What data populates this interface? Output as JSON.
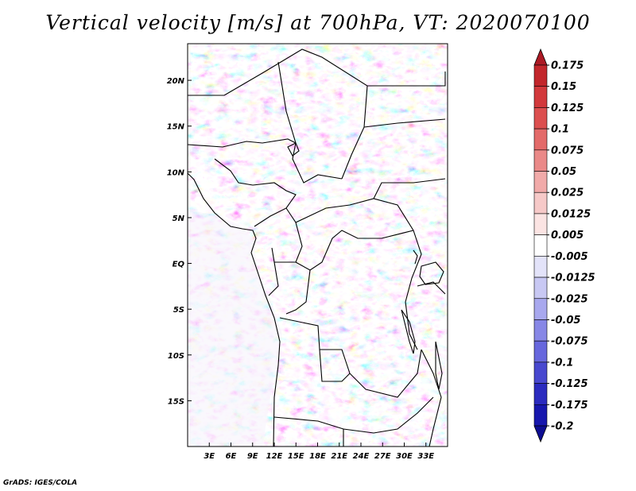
{
  "title": "Vertical velocity [m/s] at 700hPa, VT: 2020070100",
  "credit": "GrADS: IGES/COLA",
  "map": {
    "variable": "Vertical velocity",
    "units": "m/s",
    "level": "700hPa",
    "valid_time": "2020070100",
    "lon_range": [
      0,
      36
    ],
    "lat_range": [
      -20,
      24
    ],
    "lon_ticks": [
      {
        "value": 3,
        "label": "3E"
      },
      {
        "value": 6,
        "label": "6E"
      },
      {
        "value": 9,
        "label": "9E"
      },
      {
        "value": 12,
        "label": "12E"
      },
      {
        "value": 15,
        "label": "15E"
      },
      {
        "value": 18,
        "label": "18E"
      },
      {
        "value": 21,
        "label": "21E"
      },
      {
        "value": 24,
        "label": "24E"
      },
      {
        "value": 27,
        "label": "27E"
      },
      {
        "value": 30,
        "label": "30E"
      },
      {
        "value": 33,
        "label": "33E"
      }
    ],
    "lat_ticks": [
      {
        "value": 20,
        "label": "20N"
      },
      {
        "value": 15,
        "label": "15N"
      },
      {
        "value": 10,
        "label": "10N"
      },
      {
        "value": 5,
        "label": "5N"
      },
      {
        "value": 0,
        "label": "EQ"
      },
      {
        "value": -5,
        "label": "5S"
      },
      {
        "value": -10,
        "label": "10S"
      },
      {
        "value": -15,
        "label": "15S"
      }
    ]
  },
  "colorbar": {
    "labels": [
      "0.175",
      "0.15",
      "0.125",
      "0.1",
      "0.075",
      "0.05",
      "0.025",
      "0.0125",
      "0.005",
      "-0.005",
      "-0.0125",
      "-0.025",
      "-0.05",
      "-0.075",
      "-0.1",
      "-0.125",
      "-0.175",
      "-0.2"
    ],
    "colors": [
      "#ac1a24",
      "#c2262b",
      "#d2393c",
      "#dc4f4f",
      "#e36a69",
      "#ea8988",
      "#f1aaa9",
      "#f6c9c8",
      "#fbe4e3",
      "#ffffff",
      "#e3e3f9",
      "#c8c8f3",
      "#a8a8ee",
      "#8787e6",
      "#6767dd",
      "#4848cf",
      "#2b2bbf",
      "#1717ad",
      "#0d0d92"
    ]
  }
}
